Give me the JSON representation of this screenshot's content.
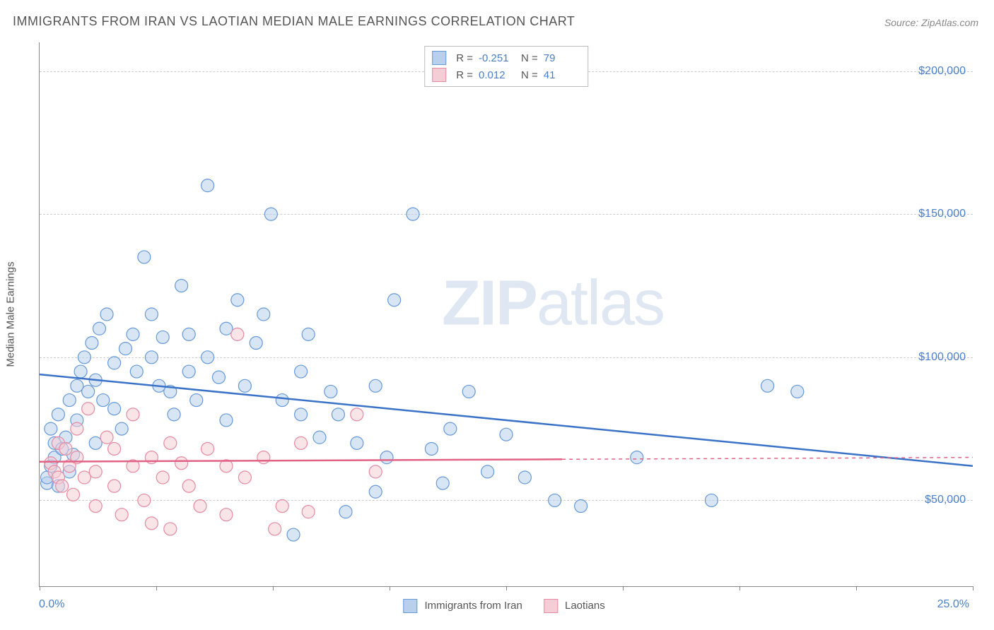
{
  "title": "IMMIGRANTS FROM IRAN VS LAOTIAN MEDIAN MALE EARNINGS CORRELATION CHART",
  "source": "Source: ZipAtlas.com",
  "watermark_a": "ZIP",
  "watermark_b": "atlas",
  "chart": {
    "type": "scatter",
    "y_axis_label": "Median Male Earnings",
    "x_min": 0.0,
    "x_max": 25.0,
    "x_min_label": "0.0%",
    "x_max_label": "25.0%",
    "y_min": 20000,
    "y_max": 210000,
    "y_ticks": [
      50000,
      100000,
      150000,
      200000
    ],
    "y_tick_labels": [
      "$50,000",
      "$100,000",
      "$150,000",
      "$200,000"
    ],
    "x_tick_positions": [
      0,
      3.125,
      6.25,
      9.375,
      12.5,
      15.625,
      18.75,
      21.875,
      25.0
    ],
    "background_color": "#ffffff",
    "grid_color": "#cccccc",
    "axis_color": "#888888",
    "marker_radius": 9,
    "marker_stroke_width": 1.2,
    "trend_line_width": 2.5,
    "series": [
      {
        "name": "Immigrants from Iran",
        "fill": "#b8d0ec",
        "stroke": "#6699d8",
        "fill_opacity": 0.55,
        "trend_color": "#3a72c8",
        "R": "-0.251",
        "N": "79",
        "trend_y_at_xmin": 94000,
        "trend_y_at_xmax": 62000,
        "trend_solid_until_x": 25.0,
        "points": [
          [
            0.2,
            56000
          ],
          [
            0.2,
            58000
          ],
          [
            0.3,
            62000
          ],
          [
            0.3,
            75000
          ],
          [
            0.4,
            65000
          ],
          [
            0.4,
            70000
          ],
          [
            0.5,
            55000
          ],
          [
            0.5,
            80000
          ],
          [
            0.6,
            68000
          ],
          [
            0.7,
            72000
          ],
          [
            0.8,
            60000
          ],
          [
            0.8,
            85000
          ],
          [
            0.9,
            66000
          ],
          [
            1.0,
            78000
          ],
          [
            1.0,
            90000
          ],
          [
            1.1,
            95000
          ],
          [
            1.2,
            100000
          ],
          [
            1.3,
            88000
          ],
          [
            1.4,
            105000
          ],
          [
            1.5,
            70000
          ],
          [
            1.5,
            92000
          ],
          [
            1.6,
            110000
          ],
          [
            1.7,
            85000
          ],
          [
            1.8,
            115000
          ],
          [
            2.0,
            98000
          ],
          [
            2.0,
            82000
          ],
          [
            2.2,
            75000
          ],
          [
            2.3,
            103000
          ],
          [
            2.5,
            108000
          ],
          [
            2.6,
            95000
          ],
          [
            2.8,
            135000
          ],
          [
            3.0,
            100000
          ],
          [
            3.0,
            115000
          ],
          [
            3.2,
            90000
          ],
          [
            3.3,
            107000
          ],
          [
            3.5,
            88000
          ],
          [
            3.6,
            80000
          ],
          [
            3.8,
            125000
          ],
          [
            4.0,
            95000
          ],
          [
            4.0,
            108000
          ],
          [
            4.2,
            85000
          ],
          [
            4.5,
            160000
          ],
          [
            4.5,
            100000
          ],
          [
            4.8,
            93000
          ],
          [
            5.0,
            110000
          ],
          [
            5.0,
            78000
          ],
          [
            5.3,
            120000
          ],
          [
            5.5,
            90000
          ],
          [
            5.8,
            105000
          ],
          [
            6.0,
            115000
          ],
          [
            6.2,
            150000
          ],
          [
            6.5,
            85000
          ],
          [
            6.8,
            38000
          ],
          [
            7.0,
            80000
          ],
          [
            7.0,
            95000
          ],
          [
            7.2,
            108000
          ],
          [
            7.5,
            72000
          ],
          [
            7.8,
            88000
          ],
          [
            8.0,
            80000
          ],
          [
            8.2,
            46000
          ],
          [
            8.5,
            70000
          ],
          [
            9.0,
            90000
          ],
          [
            9.0,
            53000
          ],
          [
            9.3,
            65000
          ],
          [
            9.5,
            120000
          ],
          [
            10.0,
            150000
          ],
          [
            10.5,
            68000
          ],
          [
            10.8,
            56000
          ],
          [
            11.0,
            75000
          ],
          [
            11.5,
            88000
          ],
          [
            12.0,
            60000
          ],
          [
            12.5,
            73000
          ],
          [
            13.0,
            58000
          ],
          [
            13.8,
            50000
          ],
          [
            14.5,
            48000
          ],
          [
            16.0,
            65000
          ],
          [
            18.0,
            50000
          ],
          [
            19.5,
            90000
          ],
          [
            20.3,
            88000
          ]
        ]
      },
      {
        "name": "Laotians",
        "fill": "#f4cdd6",
        "stroke": "#e58aa0",
        "fill_opacity": 0.55,
        "trend_color": "#e26285",
        "R": "0.012",
        "N": "41",
        "trend_y_at_xmin": 63500,
        "trend_y_at_xmax": 65000,
        "trend_solid_until_x": 14.0,
        "points": [
          [
            0.3,
            63000
          ],
          [
            0.4,
            60000
          ],
          [
            0.5,
            58000
          ],
          [
            0.5,
            70000
          ],
          [
            0.6,
            55000
          ],
          [
            0.7,
            68000
          ],
          [
            0.8,
            62000
          ],
          [
            0.9,
            52000
          ],
          [
            1.0,
            75000
          ],
          [
            1.0,
            65000
          ],
          [
            1.2,
            58000
          ],
          [
            1.3,
            82000
          ],
          [
            1.5,
            60000
          ],
          [
            1.5,
            48000
          ],
          [
            1.8,
            72000
          ],
          [
            2.0,
            55000
          ],
          [
            2.0,
            68000
          ],
          [
            2.2,
            45000
          ],
          [
            2.5,
            62000
          ],
          [
            2.5,
            80000
          ],
          [
            2.8,
            50000
          ],
          [
            3.0,
            65000
          ],
          [
            3.0,
            42000
          ],
          [
            3.3,
            58000
          ],
          [
            3.5,
            70000
          ],
          [
            3.5,
            40000
          ],
          [
            3.8,
            63000
          ],
          [
            4.0,
            55000
          ],
          [
            4.3,
            48000
          ],
          [
            4.5,
            68000
          ],
          [
            5.0,
            45000
          ],
          [
            5.0,
            62000
          ],
          [
            5.3,
            108000
          ],
          [
            5.5,
            58000
          ],
          [
            6.0,
            65000
          ],
          [
            6.3,
            40000
          ],
          [
            6.5,
            48000
          ],
          [
            7.0,
            70000
          ],
          [
            7.2,
            46000
          ],
          [
            8.5,
            80000
          ],
          [
            9.0,
            60000
          ]
        ]
      }
    ]
  },
  "legend_bottom": [
    {
      "label": "Immigrants from Iran",
      "fill": "#b8d0ec",
      "stroke": "#6699d8"
    },
    {
      "label": "Laotians",
      "fill": "#f4cdd6",
      "stroke": "#e58aa0"
    }
  ],
  "stats_labels": {
    "R": "R =",
    "N": "N ="
  }
}
